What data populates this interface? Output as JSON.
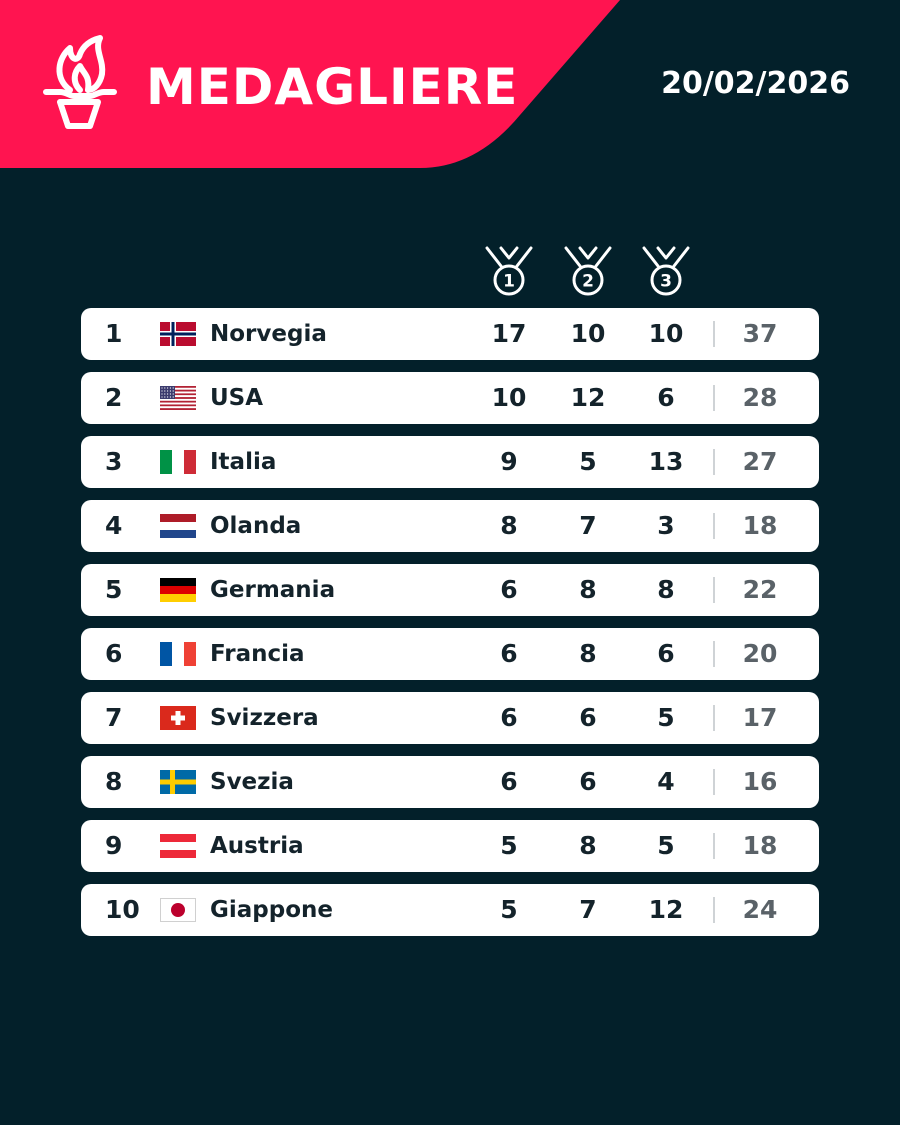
{
  "header": {
    "title": "MEDAGLIERE",
    "date": "20/02/2026",
    "accent_color": "#ff1450",
    "background_color": "#03202a",
    "logo_icon": "olympic-torch-icon"
  },
  "columns": {
    "gold_icon": "medal-1-icon",
    "silver_icon": "medal-2-icon",
    "bronze_icon": "medal-3-icon",
    "gold_number": "1",
    "silver_number": "2",
    "bronze_number": "3"
  },
  "standings": [
    {
      "rank": "1",
      "country": "Norvegia",
      "flag": "norway",
      "gold": "17",
      "silver": "10",
      "bronze": "10",
      "total": "37"
    },
    {
      "rank": "2",
      "country": "USA",
      "flag": "usa",
      "gold": "10",
      "silver": "12",
      "bronze": "6",
      "total": "28"
    },
    {
      "rank": "3",
      "country": "Italia",
      "flag": "italy",
      "gold": "9",
      "silver": "5",
      "bronze": "13",
      "total": "27"
    },
    {
      "rank": "4",
      "country": "Olanda",
      "flag": "netherlands",
      "gold": "8",
      "silver": "7",
      "bronze": "3",
      "total": "18"
    },
    {
      "rank": "5",
      "country": "Germania",
      "flag": "germany",
      "gold": "6",
      "silver": "8",
      "bronze": "8",
      "total": "22"
    },
    {
      "rank": "6",
      "country": "Francia",
      "flag": "france",
      "gold": "6",
      "silver": "8",
      "bronze": "6",
      "total": "20"
    },
    {
      "rank": "7",
      "country": "Svizzera",
      "flag": "switzerland",
      "gold": "6",
      "silver": "6",
      "bronze": "5",
      "total": "17"
    },
    {
      "rank": "8",
      "country": "Svezia",
      "flag": "sweden",
      "gold": "6",
      "silver": "6",
      "bronze": "4",
      "total": "16"
    },
    {
      "rank": "9",
      "country": "Austria",
      "flag": "austria",
      "gold": "5",
      "silver": "8",
      "bronze": "5",
      "total": "18"
    },
    {
      "rank": "10",
      "country": "Giappone",
      "flag": "japan",
      "gold": "5",
      "silver": "7",
      "bronze": "12",
      "total": "24"
    }
  ]
}
